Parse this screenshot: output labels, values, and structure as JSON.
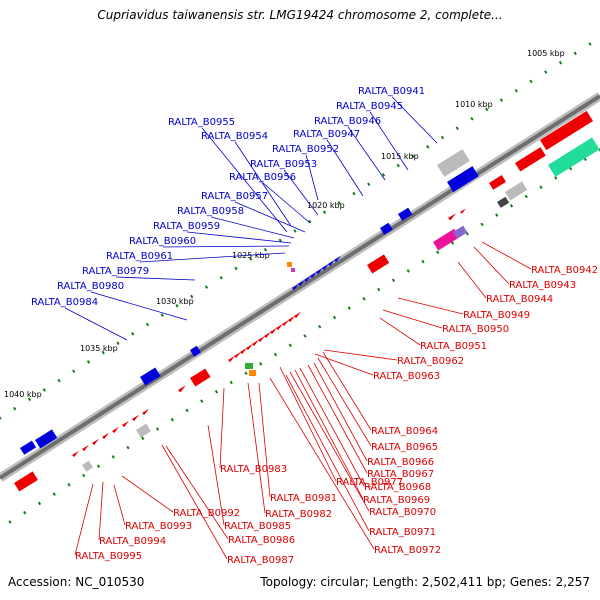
{
  "title": "Cupriavidus taiwanensis str. LMG19424 chromosome 2, complete...",
  "footer": {
    "accession": "Accession: NC_010530",
    "summary": "Topology: circular; Length: 2,502,411 bp; Genes: 2,257"
  },
  "colors": {
    "forward_label": "#0000cc",
    "reverse_label": "#dd0000",
    "backbone": "#7a7a7a",
    "tick": "#1a7a1a"
  },
  "ticks": [
    "1005 kbp",
    "1010 kbp",
    "1015 kbp",
    "1020 kbp",
    "1025 kbp",
    "1030 kbp",
    "1035 kbp",
    "1040 kbp"
  ],
  "forward_genes": [
    "RALTA_B0941",
    "RALTA_B0945",
    "RALTA_B0946",
    "RALTA_B0947",
    "RALTA_B0952",
    "RALTA_B0953",
    "RALTA_B0954",
    "RALTA_B0955",
    "RALTA_B0956",
    "RALTA_B0957",
    "RALTA_B0958",
    "RALTA_B0959",
    "RALTA_B0960",
    "RALTA_B0961",
    "RALTA_B0979",
    "RALTA_B0980",
    "RALTA_B0984"
  ],
  "reverse_genes": [
    "RALTA_B0942",
    "RALTA_B0943",
    "RALTA_B0944",
    "RALTA_B0949",
    "RALTA_B0950",
    "RALTA_B0951",
    "RALTA_B0962",
    "RALTA_B0963",
    "RALTA_B0964",
    "RALTA_B0965",
    "RALTA_B0966",
    "RALTA_B0967",
    "RALTA_B0968",
    "RALTA_B0969",
    "RALTA_B0970",
    "RALTA_B0971",
    "RALTA_B0972",
    "RALTA_B0977",
    "RALTA_B0981",
    "RALTA_B0982",
    "RALTA_B0983",
    "RALTA_B0985",
    "RALTA_B0986",
    "RALTA_B0987",
    "RALTA_B0992",
    "RALTA_B0993",
    "RALTA_B0994",
    "RALTA_B0995"
  ]
}
